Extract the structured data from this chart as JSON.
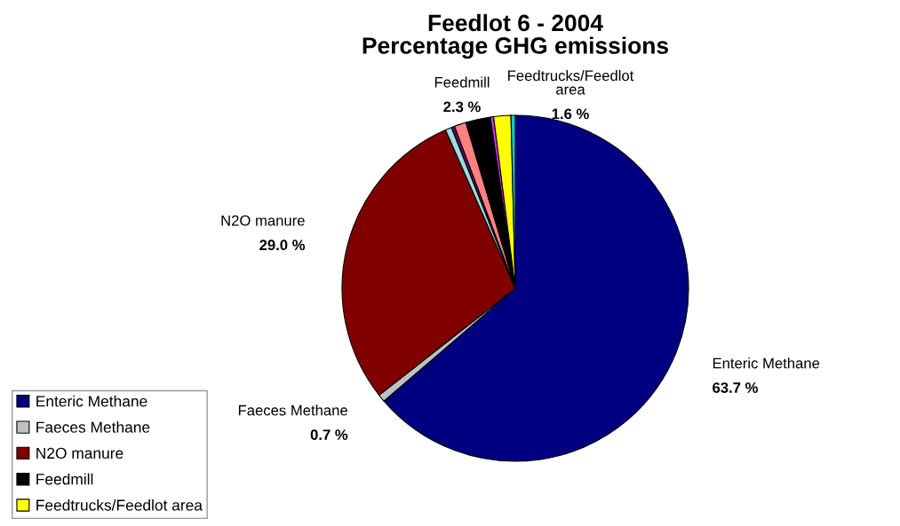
{
  "chart_data": {
    "type": "pie",
    "title": "Feedlot 6 - 2004\nPercentage GHG emissions",
    "categories": [
      "Enteric Methane",
      "Faeces Methane",
      "N2O manure",
      null,
      null,
      null,
      "Feedmill",
      null,
      "Feedtrucks/Feedlot area",
      null
    ],
    "values": [
      63.7,
      0.7,
      29.0,
      0.6,
      0.3,
      1.1,
      2.3,
      0.3,
      1.6,
      0.4
    ],
    "value_labels": [
      "63.7 %",
      "0.7 %",
      "29.0 %",
      null,
      null,
      null,
      "2.3 %",
      null,
      "1.6 %",
      null
    ],
    "colors": [
      "#000080",
      "#c0c0c0",
      "#800000",
      "#99dddd",
      "#660066",
      "#ff8080",
      "#000000",
      "#cc33ff",
      "#ffff00",
      "#00cccc"
    ],
    "legend": "bottom left"
  }
}
